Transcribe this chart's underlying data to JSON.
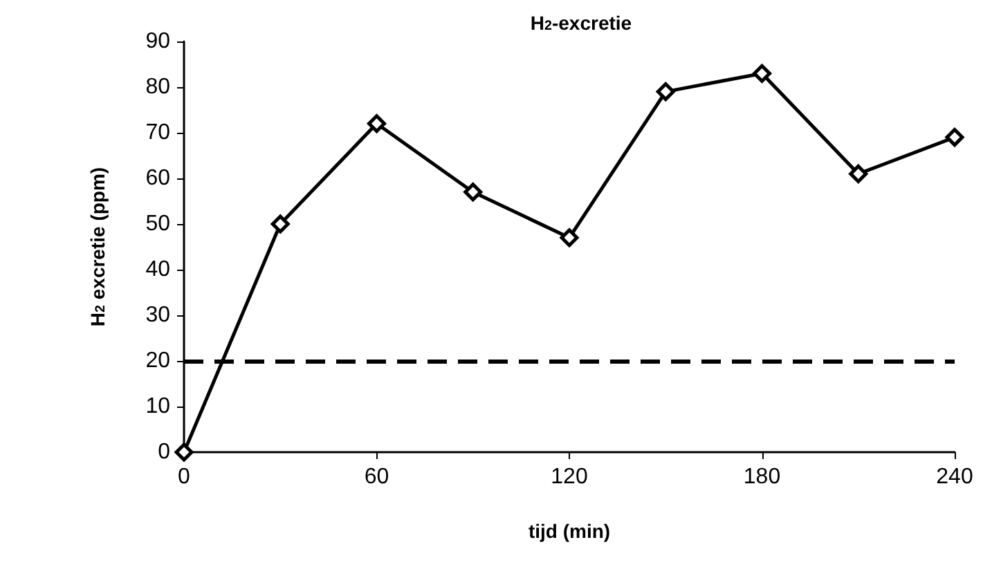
{
  "chart_data": {
    "type": "line",
    "title": "H$_{2}$-excretie",
    "xlabel": "tijd (min)",
    "ylabel": "H$_{2}$ excretie (ppm)",
    "x": [
      0,
      30,
      60,
      90,
      120,
      150,
      180,
      210,
      240
    ],
    "series": [
      {
        "color": "#000000",
        "values": [
          0,
          50,
          72,
          57,
          47,
          79,
          83,
          61,
          69
        ]
      }
    ],
    "xlim": [
      0,
      240
    ],
    "xticks": [
      0,
      60,
      120,
      180,
      240
    ],
    "ylim": [
      0,
      90
    ],
    "yticks": [
      0,
      10,
      20,
      30,
      40,
      50,
      60,
      70,
      80,
      90
    ],
    "grid": false,
    "marker": "diamond",
    "line_style": "solid",
    "ref_lines": [
      {
        "axis": "y",
        "value": 20,
        "color": "#000000",
        "line_style": "dashed"
      }
    ]
  }
}
